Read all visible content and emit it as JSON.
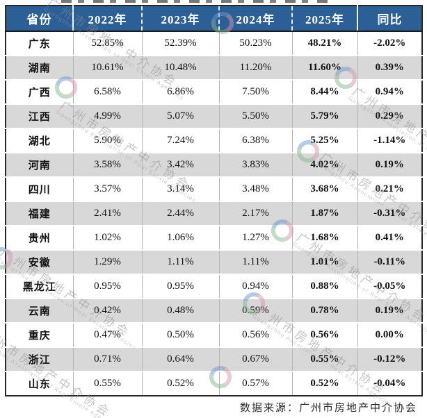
{
  "chart_data": {
    "type": "table",
    "columns": [
      "省份",
      "2022年",
      "2023年",
      "2024年",
      "2025年",
      "同比"
    ],
    "rows": [
      [
        "广东",
        "52.85%",
        "52.39%",
        "50.23%",
        "48.21%",
        "-2.02%"
      ],
      [
        "湖南",
        "10.61%",
        "10.48%",
        "11.20%",
        "11.60%",
        "0.39%"
      ],
      [
        "广西",
        "6.58%",
        "6.86%",
        "7.50%",
        "8.44%",
        "0.94%"
      ],
      [
        "江西",
        "4.99%",
        "5.07%",
        "5.50%",
        "5.79%",
        "0.29%"
      ],
      [
        "湖北",
        "5.90%",
        "7.24%",
        "6.38%",
        "5.25%",
        "-1.14%"
      ],
      [
        "河南",
        "3.58%",
        "3.42%",
        "3.83%",
        "4.02%",
        "0.19%"
      ],
      [
        "四川",
        "3.57%",
        "3.14%",
        "3.48%",
        "3.68%",
        "0.21%"
      ],
      [
        "福建",
        "2.41%",
        "2.44%",
        "2.17%",
        "1.87%",
        "-0.31%"
      ],
      [
        "贵州",
        "1.02%",
        "1.06%",
        "1.27%",
        "1.68%",
        "0.41%"
      ],
      [
        "安徽",
        "1.29%",
        "1.11%",
        "1.11%",
        "1.01%",
        "-0.11%"
      ],
      [
        "黑龙江",
        "0.95%",
        "0.95%",
        "0.94%",
        "0.88%",
        "-0.05%"
      ],
      [
        "云南",
        "0.42%",
        "0.48%",
        "0.59%",
        "0.78%",
        "0.19%"
      ],
      [
        "重庆",
        "0.47%",
        "0.50%",
        "0.56%",
        "0.56%",
        "0.00%"
      ],
      [
        "浙江",
        "0.71%",
        "0.64%",
        "0.67%",
        "0.55%",
        "-0.12%"
      ],
      [
        "山东",
        "0.55%",
        "0.52%",
        "0.57%",
        "0.52%",
        "-0.04%"
      ]
    ],
    "source_note": "数据来源：广州市房地产中介协会",
    "layout_hints": {
      "header_style": "bold white on blue, dashed white separators between year columns",
      "zebra_striping": "odd rows white, even rows gray",
      "bold_columns": [
        "省份",
        "2025年",
        "同比"
      ]
    }
  },
  "watermark": {
    "text": "广州市房地产中介协会",
    "subtext": "Guangzhou Association of Real Estate Agencies",
    "logo_colors": {
      "blue": "#7096cc",
      "pink": "#d897ad",
      "green": "#86b98e"
    }
  },
  "colors": {
    "header_bg": "#2b5f95",
    "header_text": "#ffffff",
    "row_alt": "#d8d8d8",
    "grid_line": "#b5b5b5",
    "outer_border": "#262626",
    "body_text": "#111111",
    "watermark_gray": "#8d8d8d"
  }
}
